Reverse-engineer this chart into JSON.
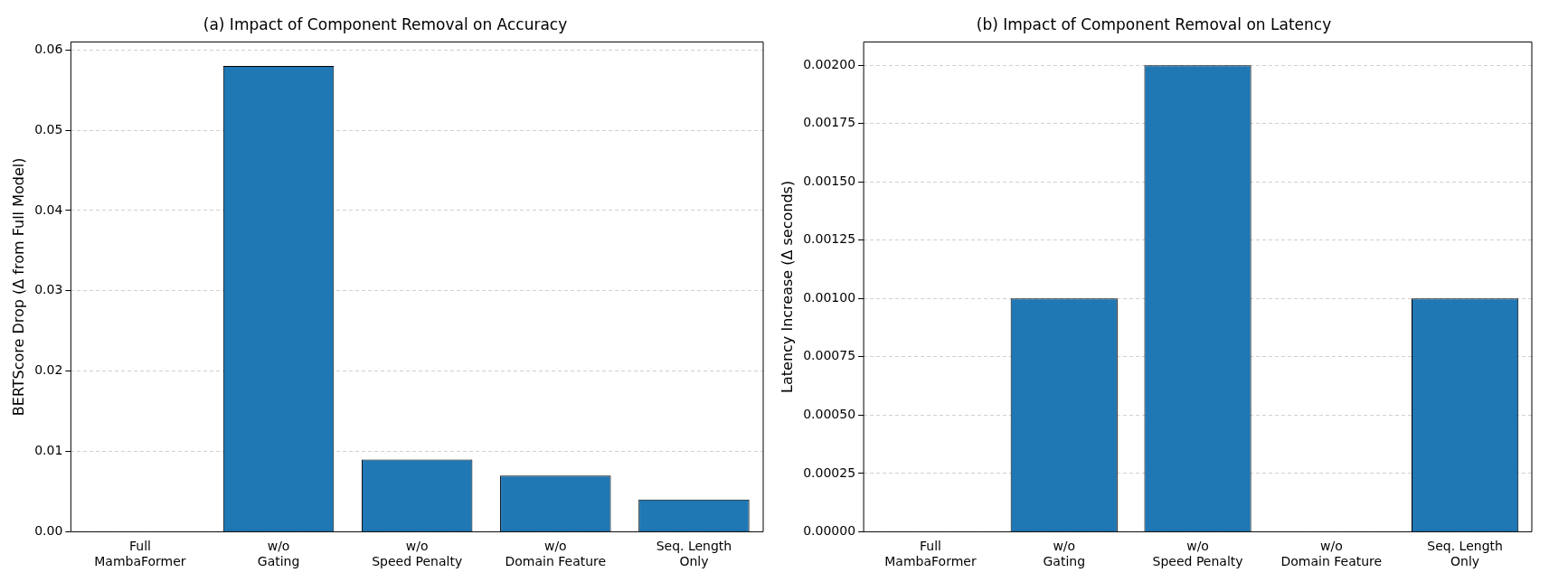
{
  "chart_data": [
    {
      "type": "bar",
      "title": "(a) Impact of Component Removal on Accuracy",
      "ylabel": "BERTScore Drop (Δ from Full Model)",
      "categories": [
        "Full\nMambaFormer",
        "w/o\nGating",
        "w/o\nSpeed Penalty",
        "w/o\nDomain Feature",
        "Seq. Length\nOnly"
      ],
      "values": [
        0,
        0.058,
        0.009,
        0.007,
        0.004
      ],
      "color": "#1f77b4",
      "ylim": [
        0,
        0.061
      ],
      "yticks": [
        {
          "value": 0,
          "label": "0.00"
        },
        {
          "value": 0.01,
          "label": "0.01"
        },
        {
          "value": 0.02,
          "label": "0.02"
        },
        {
          "value": 0.03,
          "label": "0.03"
        },
        {
          "value": 0.04,
          "label": "0.04"
        },
        {
          "value": 0.05,
          "label": "0.05"
        },
        {
          "value": 0.06,
          "label": "0.06"
        }
      ],
      "grid": "y",
      "legend": false
    },
    {
      "type": "bar",
      "title": "(b) Impact of Component Removal on Latency",
      "ylabel": "Latency Increase (Δ seconds)",
      "categories": [
        "Full\nMambaFormer",
        "w/o\nGating",
        "w/o\nSpeed Penalty",
        "w/o\nDomain Feature",
        "Seq. Length\nOnly"
      ],
      "values": [
        0,
        0.001,
        0.002,
        0,
        0.001
      ],
      "color": "#1f77b4",
      "ylim": [
        0,
        0.0021
      ],
      "yticks": [
        {
          "value": 0,
          "label": "0.00000"
        },
        {
          "value": 0.00025,
          "label": "0.00025"
        },
        {
          "value": 0.0005,
          "label": "0.00050"
        },
        {
          "value": 0.00075,
          "label": "0.00075"
        },
        {
          "value": 0.001,
          "label": "0.00100"
        },
        {
          "value": 0.00125,
          "label": "0.00125"
        },
        {
          "value": 0.0015,
          "label": "0.00150"
        },
        {
          "value": 0.00175,
          "label": "0.00175"
        },
        {
          "value": 0.002,
          "label": "0.00200"
        }
      ],
      "grid": "y",
      "legend": false
    }
  ]
}
